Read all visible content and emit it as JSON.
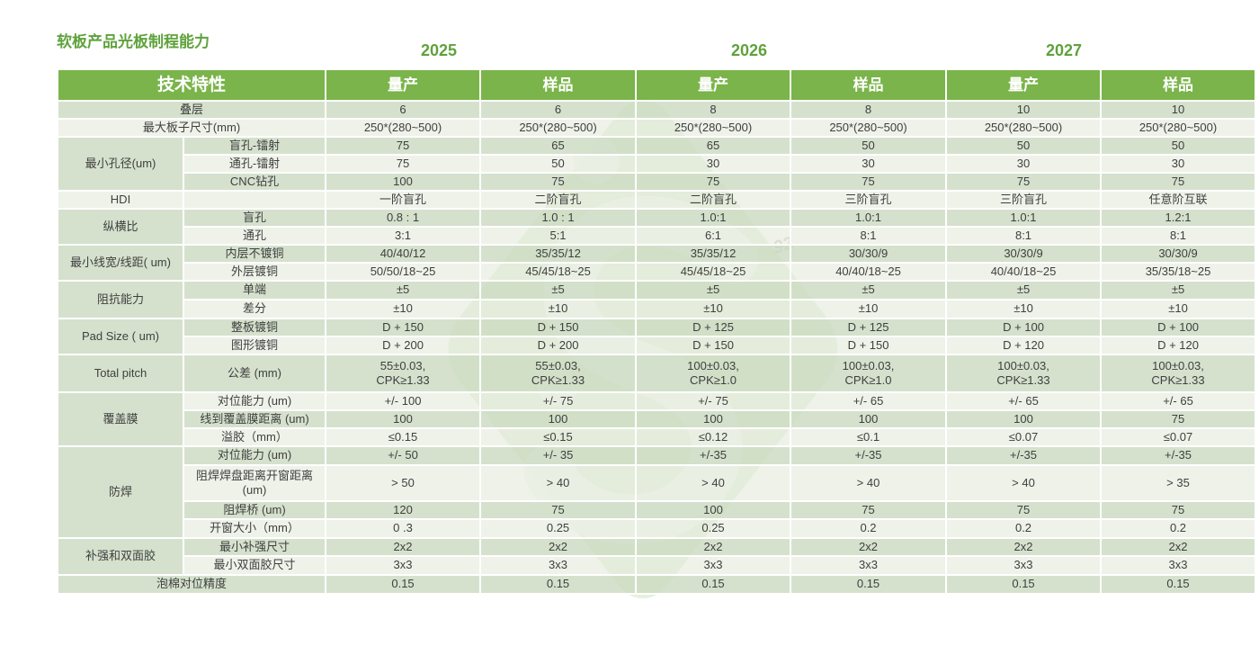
{
  "title": "软板产品光板制程能力",
  "years": [
    "2025",
    "2026",
    "2027"
  ],
  "header": {
    "feature": "技术特性",
    "columns": [
      "量产",
      "样品",
      "量产",
      "样品",
      "量产",
      "样品"
    ]
  },
  "watermark": {
    "faint_text": "92",
    "logo": "s-diamond-logo"
  },
  "colors": {
    "header_green": "#7ab44a",
    "title_green": "#5fa23c",
    "band_dark": "#d5e0cd",
    "band_light": "#eef2e9",
    "text": "#3f3f3f",
    "watermark_green": "#cfe5c0"
  },
  "table": {
    "rows": [
      {
        "full": true,
        "label": "叠层",
        "h": 20,
        "band": "dark",
        "values": [
          "6",
          "6",
          "8",
          "8",
          "10",
          "10"
        ]
      },
      {
        "full": true,
        "label": "最大板子尺寸(mm)",
        "h": 20,
        "band": "light",
        "values": [
          "250*(280~500)",
          "250*(280~500)",
          "250*(280~500)",
          "250*(280~500)",
          "250*(280~500)",
          "250*(280~500)"
        ]
      },
      {
        "group": {
          "label": "最小孔径(um)",
          "span": 3
        },
        "label": "盲孔-镭射",
        "h": 20,
        "band": "dark",
        "values": [
          "75",
          "65",
          "65",
          "50",
          "50",
          "50"
        ]
      },
      {
        "label": "通孔-镭射",
        "h": 20,
        "band": "light",
        "values": [
          "75",
          "50",
          "30",
          "30",
          "30",
          "30"
        ]
      },
      {
        "label": "CNC钻孔",
        "h": 20,
        "band": "dark",
        "values": [
          "100",
          "75",
          "75",
          "75",
          "75",
          "75"
        ]
      },
      {
        "group": {
          "label": "HDI",
          "span": 1,
          "band": "light"
        },
        "label": "",
        "h": 20,
        "band": "light",
        "values": [
          "一阶盲孔",
          "二阶盲孔",
          "二阶盲孔",
          "三阶盲孔",
          "三阶盲孔",
          "任意阶互联"
        ]
      },
      {
        "group": {
          "label": "纵横比",
          "span": 2
        },
        "label": "盲孔",
        "h": 20,
        "band": "dark",
        "values": [
          "0.8 : 1",
          "1.0 : 1",
          "1.0:1",
          "1.0:1",
          "1.0:1",
          "1.2:1"
        ]
      },
      {
        "label": "通孔",
        "h": 20,
        "band": "light",
        "values": [
          "3:1",
          "5:1",
          "6:1",
          "8:1",
          "8:1",
          "8:1"
        ]
      },
      {
        "group": {
          "label": "最小线宽/线距( um)",
          "span": 2
        },
        "label": "内层不镀铜",
        "h": 20,
        "band": "dark",
        "values": [
          "40/40/12",
          "35/35/12",
          "35/35/12",
          "30/30/9",
          "30/30/9",
          "30/30/9"
        ]
      },
      {
        "label": "外层镀铜",
        "h": 20,
        "band": "light",
        "values": [
          "50/50/18~25",
          "45/45/18~25",
          "45/45/18~25",
          "40/40/18~25",
          "40/40/18~25",
          "35/35/18~25"
        ]
      },
      {
        "group": {
          "label": "阻抗能力",
          "span": 2
        },
        "label": "单端",
        "h": 21,
        "band": "dark",
        "values": [
          "±5",
          "±5",
          "±5",
          "±5",
          "±5",
          "±5"
        ]
      },
      {
        "label": "差分",
        "h": 21,
        "band": "light",
        "values": [
          "±10",
          "±10",
          "±10",
          "±10",
          "±10",
          "±10"
        ]
      },
      {
        "group": {
          "label": "Pad Size ( um)",
          "span": 2
        },
        "label": "整板镀铜",
        "h": 20,
        "band": "dark",
        "values": [
          "D + 150",
          "D + 150",
          "D + 125",
          "D + 125",
          "D + 100",
          "D + 100"
        ]
      },
      {
        "label": "图形镀铜",
        "h": 20,
        "band": "light",
        "values": [
          "D + 200",
          "D + 200",
          "D + 150",
          "D + 150",
          "D + 120",
          "D + 120"
        ]
      },
      {
        "group": {
          "label": "Total pitch",
          "span": 1
        },
        "label": "公差 (mm)",
        "h": 42,
        "band": "dark",
        "values": [
          "55±0.03,\nCPK≥1.33",
          "55±0.03,\nCPK≥1.33",
          "100±0.03,\nCPK≥1.0",
          "100±0.03,\nCPK≥1.0",
          "100±0.03,\nCPK≥1.33",
          "100±0.03,\nCPK≥1.33"
        ]
      },
      {
        "group": {
          "label": "覆盖膜",
          "span": 3
        },
        "label": "对位能力 (um)",
        "h": 20,
        "band": "light",
        "values": [
          "+/- 100",
          "+/- 75",
          "+/- 75",
          "+/- 65",
          "+/- 65",
          "+/- 65"
        ]
      },
      {
        "label": "线到覆盖膜距离 (um)",
        "h": 20,
        "band": "dark",
        "values": [
          "100",
          "100",
          "100",
          "100",
          "100",
          "75"
        ]
      },
      {
        "label": "溢胶（mm）",
        "h": 20,
        "band": "light",
        "values": [
          "≤0.15",
          "≤0.15",
          "≤0.12",
          "≤0.1",
          "≤0.07",
          "≤0.07"
        ]
      },
      {
        "group": {
          "label": "防焊",
          "span": 4
        },
        "label": "对位能力 (um)",
        "h": 21,
        "band": "dark",
        "values": [
          "+/- 50",
          "+/- 35",
          "+/-35",
          "+/-35",
          "+/-35",
          "+/-35"
        ]
      },
      {
        "label": "阻焊焊盘距离开窗距离\n(um)",
        "h": 40,
        "band": "light",
        "values": [
          "> 50",
          "> 40",
          "> 40",
          "> 40",
          "> 40",
          "> 35"
        ]
      },
      {
        "label": "阻焊桥 (um)",
        "h": 20,
        "band": "dark",
        "values": [
          "120",
          "75",
          "100",
          "75",
          "75",
          "75"
        ]
      },
      {
        "label": "开窗大小（mm）",
        "h": 21,
        "band": "light",
        "values": [
          "0 .3",
          "0.25",
          "0.25",
          "0.2",
          "0.2",
          "0.2"
        ]
      },
      {
        "group": {
          "label": "补强和双面胶",
          "span": 2
        },
        "label": "最小补强尺寸",
        "h": 20,
        "band": "dark",
        "values": [
          "2x2",
          "2x2",
          "2x2",
          "2x2",
          "2x2",
          "2x2"
        ]
      },
      {
        "label": "最小双面胶尺寸",
        "h": 21,
        "band": "light",
        "values": [
          "3x3",
          "3x3",
          "3x3",
          "3x3",
          "3x3",
          "3x3"
        ]
      },
      {
        "full": true,
        "label": "泡棉对位精度",
        "h": 21,
        "band": "dark",
        "values": [
          "0.15",
          "0.15",
          "0.15",
          "0.15",
          "0.15",
          "0.15"
        ]
      }
    ]
  }
}
